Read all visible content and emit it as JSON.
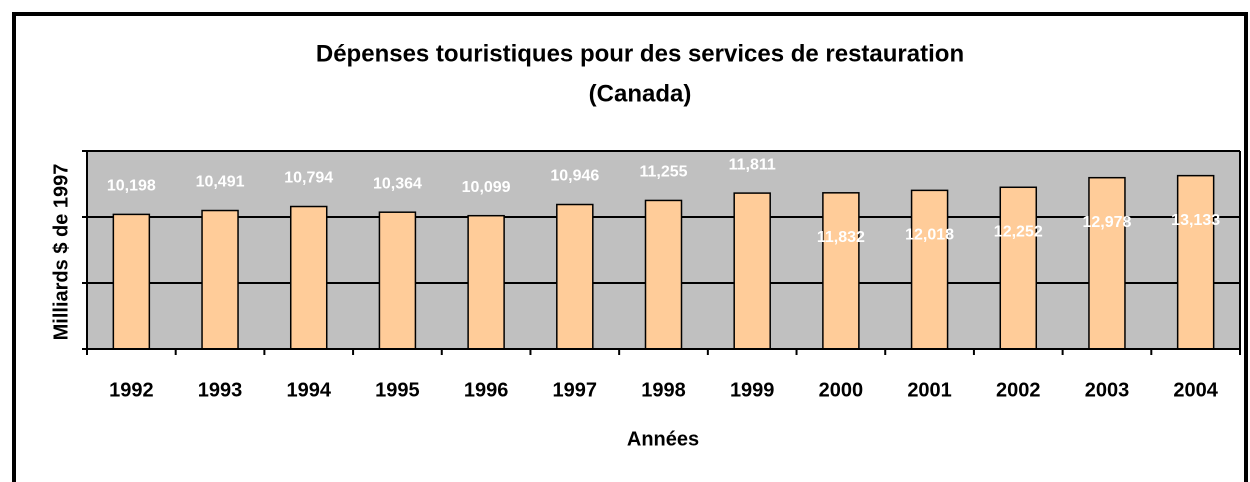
{
  "chart_data": {
    "type": "bar",
    "title": [
      "Dépenses touristiques pour des services de restauration",
      "(Canada)"
    ],
    "x_label": "Années",
    "y_label": "Milliards $ de 1997",
    "categories": [
      "1992",
      "1993",
      "1994",
      "1995",
      "1996",
      "1997",
      "1998",
      "1999",
      "2000",
      "2001",
      "2002",
      "2003",
      "2004"
    ],
    "values": [
      10198,
      10491,
      10794,
      10364,
      10099,
      10946,
      11255,
      11811,
      11832,
      12018,
      12252,
      12978,
      13133
    ],
    "value_labels": [
      "10,198",
      "10,491",
      "10,794",
      "10,364",
      "10,099",
      "10,946",
      "11,255",
      "11,811",
      "11,832",
      "12,018",
      "12,252",
      "12,978",
      "13,133"
    ],
    "color": "#ffcc99",
    "ylim": [
      0,
      15000
    ],
    "yticks": [
      0,
      5000,
      10000,
      15000
    ],
    "grid": true
  }
}
